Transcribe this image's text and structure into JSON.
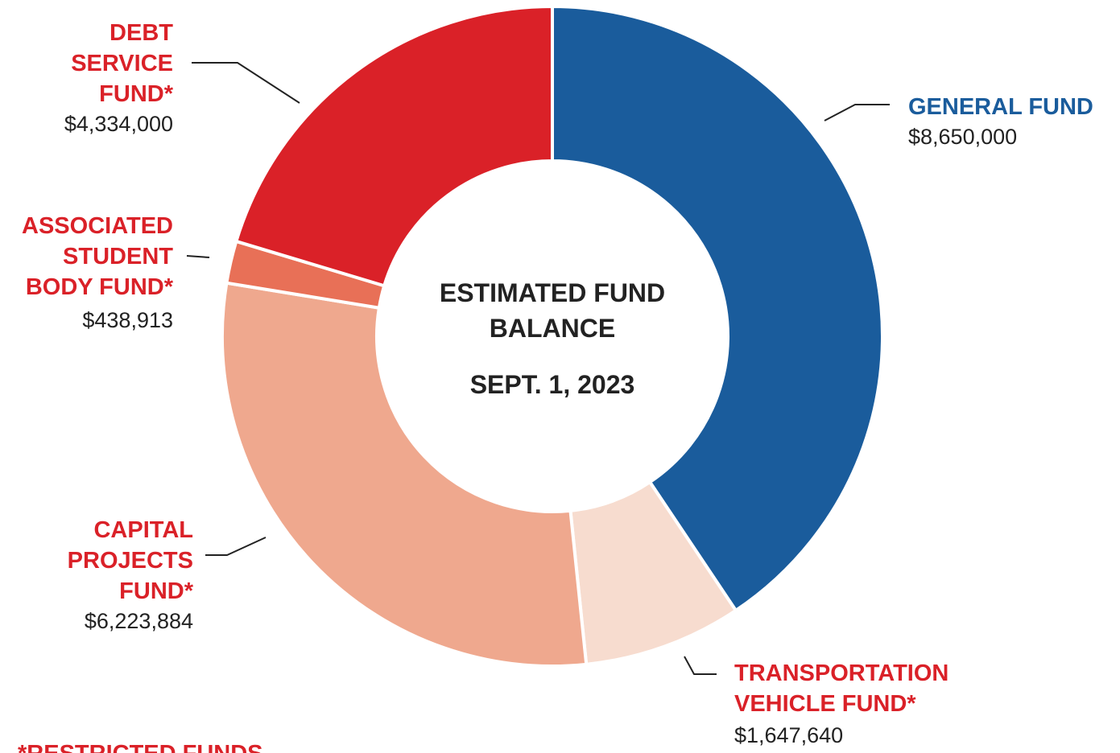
{
  "chart_data": {
    "type": "donut",
    "title": "ESTIMATED FUND BALANCE",
    "subtitle": "SEPT. 1, 2023",
    "categories": [
      "GENERAL FUND",
      "TRANSPORTATION VEHICLE FUND*",
      "CAPITAL PROJECTS FUND*",
      "ASSOCIATED STUDENT BODY FUND*",
      "DEBT SERVICE FUND*"
    ],
    "values": [
      8650000,
      1647640,
      6223884,
      438913,
      4334000
    ],
    "value_labels": [
      "$8,650,000",
      "$1,647,640",
      "$6,223,884",
      "$438,913",
      "$4,334,000"
    ],
    "colors": [
      "#1a5c9c",
      "#f7dccf",
      "#efa88e",
      "#e87057",
      "#da2128"
    ],
    "note": "*RESTRICTED FUNDS"
  }
}
